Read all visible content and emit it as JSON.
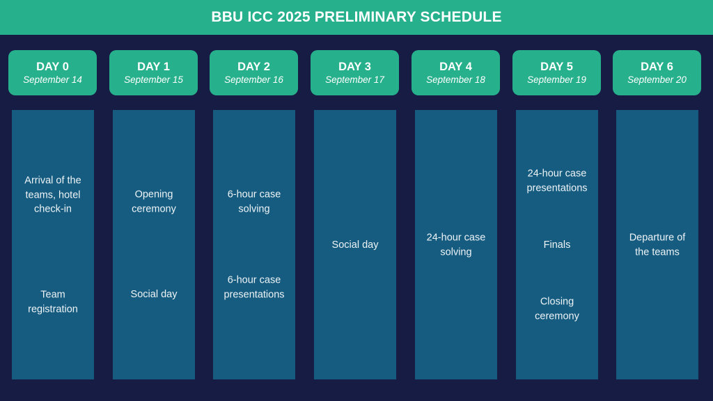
{
  "title": "BBU ICC 2025 PRELIMINARY SCHEDULE",
  "colors": {
    "background": "#171c45",
    "accent": "#27b08c",
    "column": "#155c80"
  },
  "days": [
    {
      "label": "DAY 0",
      "date": "September 14",
      "activities": [
        "Arrival of the teams, hotel check-in",
        "Team registration"
      ]
    },
    {
      "label": "DAY 1",
      "date": "September 15",
      "activities": [
        "Opening ceremony",
        "Social day"
      ]
    },
    {
      "label": "DAY 2",
      "date": "September 16",
      "activities": [
        "6-hour case solving",
        "6-hour case presentations"
      ]
    },
    {
      "label": "DAY 3",
      "date": "September 17",
      "activities": [
        "Social day"
      ]
    },
    {
      "label": "DAY 4",
      "date": "September 18",
      "activities": [
        "24-hour case solving"
      ]
    },
    {
      "label": "DAY 5",
      "date": "September 19",
      "activities": [
        "24-hour case presentations",
        "Finals",
        "Closing ceremony"
      ]
    },
    {
      "label": "DAY 6",
      "date": "September 20",
      "activities": [
        "Departure of the teams"
      ]
    }
  ]
}
